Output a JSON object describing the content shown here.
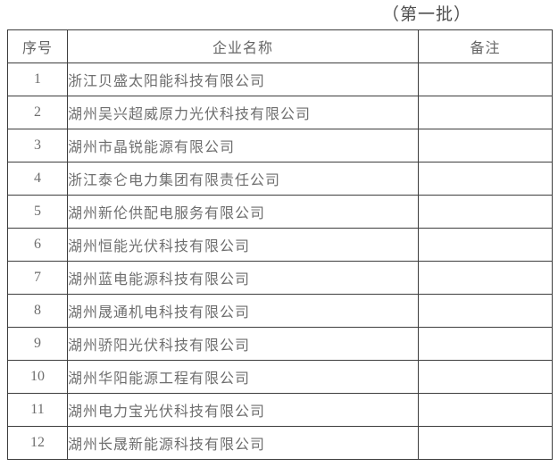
{
  "doc": {
    "batch_title": "（第一批）"
  },
  "table": {
    "headers": {
      "index": "序号",
      "company": "企业名称",
      "remark": "备注"
    },
    "rows": [
      {
        "index": "1",
        "company": "浙江贝盛太阳能科技有限公司",
        "remark": ""
      },
      {
        "index": "2",
        "company": "湖州吴兴超威原力光伏科技有限公司",
        "remark": ""
      },
      {
        "index": "3",
        "company": "湖州市晶锐能源有限公司",
        "remark": ""
      },
      {
        "index": "4",
        "company": "浙江泰仑电力集团有限责任公司",
        "remark": ""
      },
      {
        "index": "5",
        "company": "湖州新伦供配电服务有限公司",
        "remark": ""
      },
      {
        "index": "6",
        "company": "湖州恒能光伏科技有限公司",
        "remark": ""
      },
      {
        "index": "7",
        "company": "湖州蓝电能源科技有限公司",
        "remark": ""
      },
      {
        "index": "8",
        "company": "湖州晟通机电科技有限公司",
        "remark": ""
      },
      {
        "index": "9",
        "company": "湖州骄阳光伏科技有限公司",
        "remark": ""
      },
      {
        "index": "10",
        "company": "湖州华阳能源工程有限公司",
        "remark": ""
      },
      {
        "index": "11",
        "company": "湖州电力宝光伏科技有限公司",
        "remark": ""
      },
      {
        "index": "12",
        "company": "湖州长晟新能源科技有限公司",
        "remark": ""
      }
    ]
  },
  "colors": {
    "background": "#ffffff",
    "border": "#3d3d3d",
    "text": "#6e6e6e",
    "title_text": "#4f4f4f"
  }
}
